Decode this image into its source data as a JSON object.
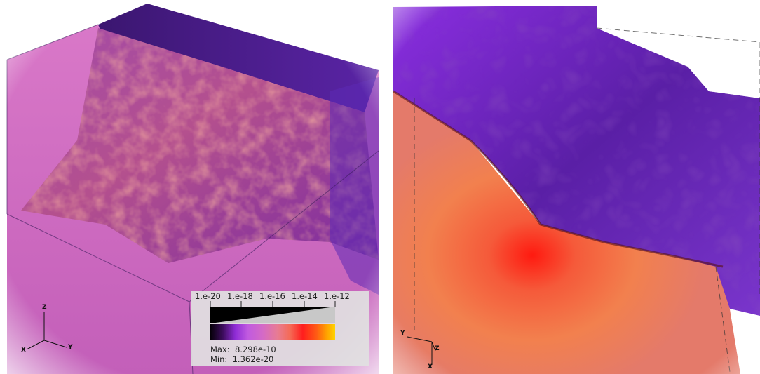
{
  "left_view": {
    "legend": {
      "tick_labels": [
        "1.e-20",
        "1.e-18",
        "1.e-16",
        "1.e-14",
        "1.e-12"
      ],
      "max_label": "Max:",
      "max_value": "8.298e-10",
      "min_label": "Min:",
      "min_value": "1.362e-20"
    },
    "axes": {
      "x": "X",
      "y": "Y",
      "z": "Z"
    }
  },
  "right_view": {
    "axes": {
      "x": "X",
      "y": "Y",
      "z": "Z"
    }
  },
  "colors": {
    "background_pink": "#d66fc3",
    "purple": "#7a22c8",
    "dark_purple": "#4a1a86",
    "orange": "#f07e4a",
    "red_core": "#ff2a1a"
  }
}
